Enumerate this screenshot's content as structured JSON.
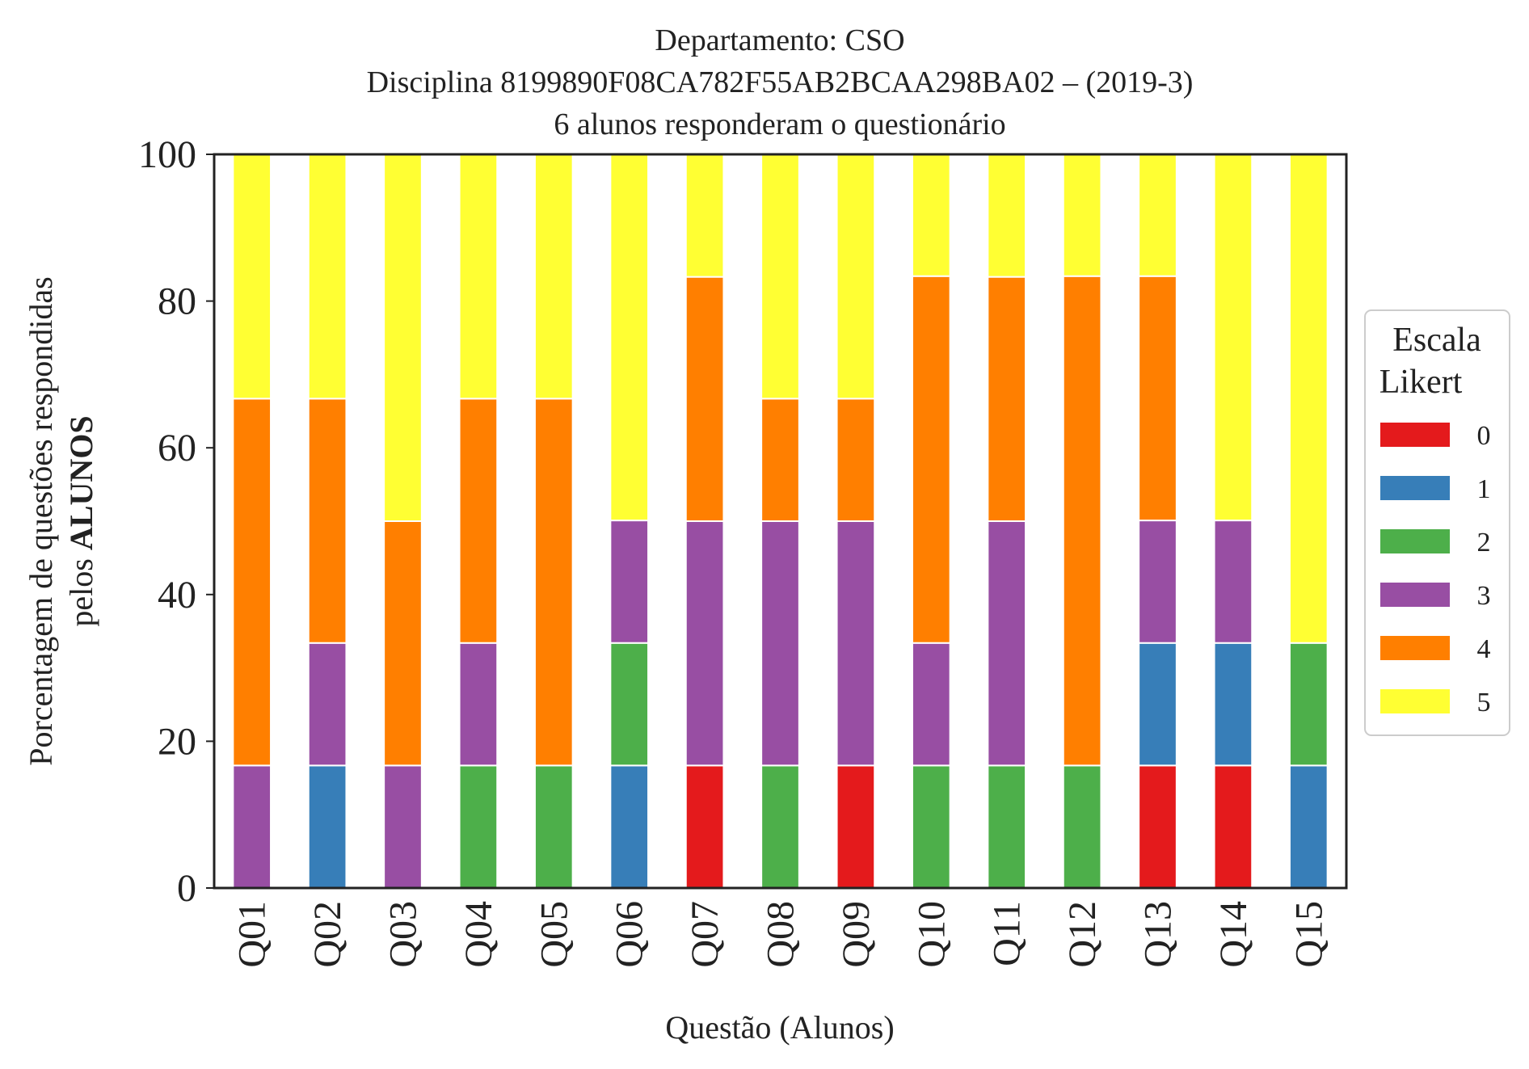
{
  "chart_data": {
    "type": "bar",
    "stacked": true,
    "title_lines": [
      "Departamento: CSO",
      "Disciplina 8199890F08CA782F55AB2BCAA298BA02 – (2019-3)",
      "6 alunos responderam o questionário"
    ],
    "xlabel": "Questão (Alunos)",
    "ylabel_line1": "Porcentagem de questões respondidas",
    "ylabel_line2_prefix": "pelos ",
    "ylabel_line2_bold": "ALUNOS",
    "ylim": [
      0,
      100
    ],
    "yticks": [
      "0",
      "20",
      "40",
      "60",
      "80",
      "100"
    ],
    "grid": false,
    "legend_title_lines": [
      "Escala",
      "Likert"
    ],
    "legend_position": "right-outside",
    "categories": [
      "Q01",
      "Q02",
      "Q03",
      "Q04",
      "Q05",
      "Q06",
      "Q07",
      "Q08",
      "Q09",
      "Q10",
      "Q11",
      "Q12",
      "Q13",
      "Q14",
      "Q15"
    ],
    "series": [
      {
        "name": "0",
        "color": "#e41a1c",
        "values": [
          0,
          0,
          0,
          0,
          0,
          0,
          16.7,
          0,
          16.7,
          0,
          0,
          0,
          16.7,
          16.7,
          0
        ]
      },
      {
        "name": "1",
        "color": "#377eb8",
        "values": [
          0,
          16.7,
          0,
          0,
          0,
          16.7,
          0,
          0,
          0,
          0,
          0,
          0,
          16.7,
          16.7,
          16.7
        ]
      },
      {
        "name": "2",
        "color": "#4daf4a",
        "values": [
          0,
          0,
          0,
          16.7,
          16.7,
          16.7,
          0,
          16.7,
          0,
          16.7,
          16.7,
          16.7,
          0,
          0,
          16.7
        ]
      },
      {
        "name": "3",
        "color": "#984ea3",
        "values": [
          16.7,
          16.7,
          16.7,
          16.7,
          0,
          16.7,
          33.3,
          33.3,
          33.3,
          16.7,
          33.3,
          0,
          16.7,
          16.7,
          0
        ]
      },
      {
        "name": "4",
        "color": "#ff7f00",
        "values": [
          50,
          33.3,
          33.3,
          33.3,
          50,
          0,
          33.3,
          16.7,
          16.7,
          50,
          33.3,
          66.7,
          33.3,
          0,
          0
        ]
      },
      {
        "name": "5",
        "color": "#ffff33",
        "values": [
          33.3,
          33.3,
          50,
          33.3,
          33.3,
          50,
          16.7,
          33.3,
          33.3,
          16.7,
          16.7,
          16.7,
          16.7,
          50,
          66.7
        ]
      }
    ]
  }
}
